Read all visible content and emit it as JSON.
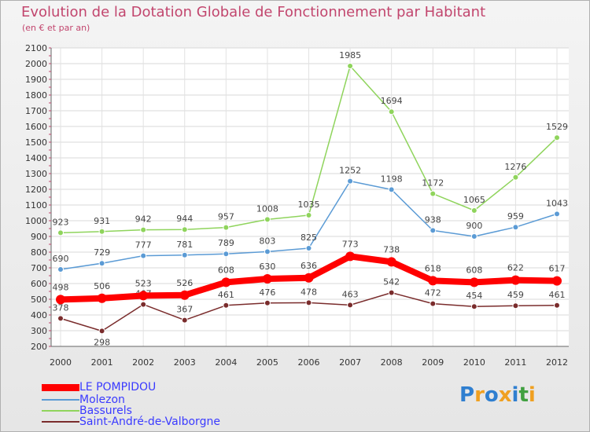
{
  "title": "Evolution de la Dotation Globale de Fonctionnement par Habitant",
  "subtitle": "(en € et par an)",
  "logo": {
    "text": "Proxiti",
    "letters": [
      "P",
      "r",
      "o",
      "x",
      "i",
      "t",
      "i"
    ],
    "colors": [
      "#2f7fd0",
      "#f0a020",
      "#2f7fd0",
      "#f0a020",
      "#2f7fd0",
      "#40a040",
      "#f0a020"
    ]
  },
  "chart_data": {
    "type": "line",
    "title": "Evolution de la Dotation Globale de Fonctionnement par Habitant",
    "subtitle": "(en € et par an)",
    "xlabel": "",
    "ylabel": "",
    "ylim": [
      200,
      2100
    ],
    "yticks": [
      200,
      300,
      400,
      500,
      600,
      700,
      800,
      900,
      1000,
      1100,
      1200,
      1300,
      1400,
      1500,
      1600,
      1700,
      1800,
      1900,
      2000,
      2100
    ],
    "categories": [
      "2000",
      "2001",
      "2002",
      "2003",
      "2004",
      "2005",
      "2006",
      "2007",
      "2008",
      "2009",
      "2010",
      "2011",
      "2012"
    ],
    "grid": true,
    "legend": "bottom-left",
    "series": [
      {
        "name": "LE POMPIDOU",
        "color": "#ff0000",
        "values": [
          498,
          506,
          523,
          526,
          608,
          630,
          636,
          773,
          738,
          618,
          608,
          622,
          617
        ],
        "labels": [
          "498",
          "506",
          "523",
          "526",
          "608",
          "630",
          "636",
          "773",
          "738",
          "618",
          "608",
          "622",
          "617"
        ]
      },
      {
        "name": "Molezon",
        "color": "#5b9bd5",
        "values": [
          690,
          729,
          777,
          781,
          789,
          803,
          825,
          1252,
          1198,
          938,
          900,
          959,
          1043
        ],
        "labels": [
          "690",
          "729",
          "777",
          "781",
          "789",
          "803",
          "825",
          "1252",
          "1198",
          "938",
          "900",
          "959",
          "1043"
        ]
      },
      {
        "name": "Bassurels",
        "color": "#8fd45c",
        "values": [
          923,
          931,
          942,
          944,
          957,
          1008,
          1035,
          1985,
          1694,
          1172,
          1065,
          1276,
          1529
        ],
        "labels": [
          "923",
          "931",
          "942",
          "944",
          "957",
          "1008",
          "1035",
          "1985",
          "1694",
          "1172",
          "1065",
          "1276",
          "1529"
        ]
      },
      {
        "name": "Saint-André-de-Valborgne",
        "color": "#7a2c2c",
        "values": [
          378,
          298,
          467,
          367,
          461,
          476,
          478,
          463,
          542,
          472,
          454,
          459,
          461
        ],
        "labels": [
          "378",
          "298",
          "467",
          "367",
          "461",
          "476",
          "478",
          "463",
          "542",
          "472",
          "454",
          "459",
          "461"
        ]
      }
    ]
  }
}
